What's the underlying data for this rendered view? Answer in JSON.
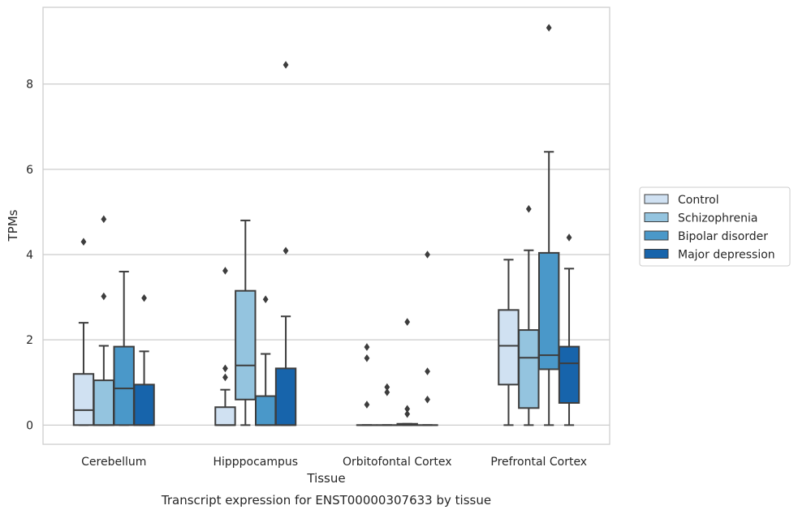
{
  "chart_data": {
    "type": "box",
    "caption": "Transcript expression for ENST00000307633 by tissue",
    "xlabel": "Tissue",
    "ylabel": "TPMs",
    "ylim": [
      -0.45,
      9.8
    ],
    "yticks": [
      0,
      2,
      4,
      6,
      8
    ],
    "grid": true,
    "legend_position": "right",
    "categories": [
      "Cerebellum",
      "Hipppocampus",
      "Orbitofontal Cortex",
      "Prefrontal Cortex"
    ],
    "series": [
      {
        "name": "Control",
        "color": "#d0e1f2",
        "boxes": [
          {
            "whislo": 0,
            "q1": 0,
            "med": 0.35,
            "q3": 1.2,
            "whishi": 2.4,
            "fliers": [
              4.3
            ]
          },
          {
            "whislo": 0,
            "q1": 0,
            "med": 0,
            "q3": 0.42,
            "whishi": 0.83,
            "fliers": [
              1.12,
              1.33,
              3.62
            ]
          },
          {
            "whislo": 0,
            "q1": 0,
            "med": 0,
            "q3": 0,
            "whishi": 0,
            "fliers": [
              0.48,
              1.57,
              1.83
            ]
          },
          {
            "whislo": 0,
            "q1": 0.95,
            "med": 1.86,
            "q3": 2.7,
            "whishi": 3.88,
            "fliers": []
          }
        ]
      },
      {
        "name": "Schizophrenia",
        "color": "#94c4df",
        "boxes": [
          {
            "whislo": 0,
            "q1": 0,
            "med": 0,
            "q3": 1.05,
            "whishi": 1.86,
            "fliers": [
              3.02,
              4.83
            ]
          },
          {
            "whislo": 0,
            "q1": 0.6,
            "med": 1.4,
            "q3": 3.15,
            "whishi": 4.8,
            "fliers": []
          },
          {
            "whislo": 0,
            "q1": 0,
            "med": 0,
            "q3": 0,
            "whishi": 0,
            "fliers": [
              0.77,
              0.89
            ]
          },
          {
            "whislo": 0,
            "q1": 0.4,
            "med": 1.58,
            "q3": 2.23,
            "whishi": 4.1,
            "fliers": [
              5.07
            ]
          }
        ]
      },
      {
        "name": "Bipolar disorder",
        "color": "#4a98c9",
        "boxes": [
          {
            "whislo": 0,
            "q1": 0,
            "med": 0.86,
            "q3": 1.84,
            "whishi": 3.6,
            "fliers": []
          },
          {
            "whislo": 0,
            "q1": 0,
            "med": 0,
            "q3": 0.68,
            "whishi": 1.67,
            "fliers": [
              2.95
            ]
          },
          {
            "whislo": 0,
            "q1": 0,
            "med": 0,
            "q3": 0.03,
            "whishi": 0.03,
            "fliers": [
              0.26,
              0.38,
              2.42
            ]
          },
          {
            "whislo": 0,
            "q1": 1.31,
            "med": 1.64,
            "q3": 4.04,
            "whishi": 6.41,
            "fliers": [
              9.32
            ]
          }
        ]
      },
      {
        "name": "Major depression",
        "color": "#1764ab",
        "boxes": [
          {
            "whislo": 0,
            "q1": 0,
            "med": 0,
            "q3": 0.95,
            "whishi": 1.73,
            "fliers": [
              2.98
            ]
          },
          {
            "whislo": 0,
            "q1": 0,
            "med": 0,
            "q3": 1.33,
            "whishi": 2.55,
            "fliers": [
              4.09,
              8.45
            ]
          },
          {
            "whislo": 0,
            "q1": 0,
            "med": 0,
            "q3": 0,
            "whishi": 0,
            "fliers": [
              0.6,
              1.26,
              4.0
            ]
          },
          {
            "whislo": 0,
            "q1": 0.52,
            "med": 1.45,
            "q3": 1.84,
            "whishi": 3.67,
            "fliers": [
              4.4
            ]
          }
        ]
      }
    ]
  }
}
